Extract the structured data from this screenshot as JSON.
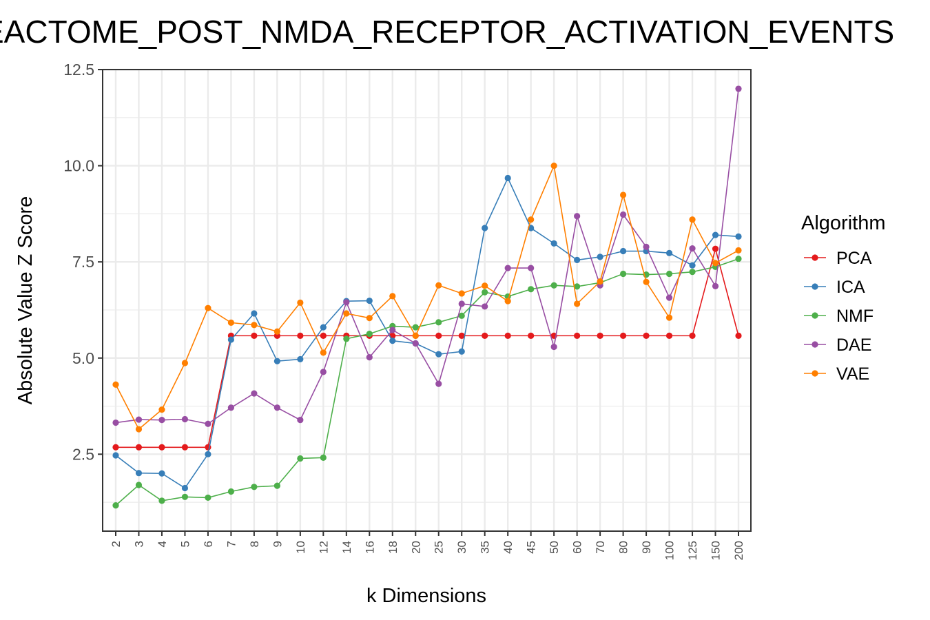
{
  "colors": {
    "PCA": "#e41a1c",
    "ICA": "#377eb8",
    "NMF": "#4daf4a",
    "DAE": "#984ea3",
    "VAE": "#ff7f00",
    "grid": "#ebebeb",
    "panel_border": "#333333"
  },
  "chart_data": {
    "type": "line",
    "title": "REACTOME_POST_NMDA_RECEPTOR_ACTIVATION_EVENTS",
    "xlabel": "k Dimensions",
    "ylabel": "Absolute Value Z Score",
    "categories": [
      "2",
      "3",
      "4",
      "5",
      "6",
      "7",
      "8",
      "9",
      "10",
      "12",
      "14",
      "16",
      "18",
      "20",
      "25",
      "30",
      "35",
      "40",
      "45",
      "50",
      "60",
      "70",
      "80",
      "90",
      "100",
      "125",
      "150",
      "200"
    ],
    "ylim": [
      0.5,
      12.5
    ],
    "yticks": [
      "2.5",
      "5.0",
      "7.5",
      "10.0",
      "12.5"
    ],
    "grid": true,
    "legend": {
      "title": "Algorithm",
      "placement": "right"
    },
    "series": [
      {
        "name": "PCA",
        "values": [
          2.68,
          2.68,
          2.68,
          2.68,
          2.68,
          5.58,
          5.58,
          5.58,
          5.58,
          5.58,
          5.58,
          5.58,
          5.58,
          5.58,
          5.58,
          5.58,
          5.58,
          5.58,
          5.58,
          5.58,
          5.58,
          5.58,
          5.58,
          5.58,
          5.58,
          5.58,
          7.84,
          5.58
        ]
      },
      {
        "name": "ICA",
        "values": [
          2.47,
          2.01,
          2.0,
          1.62,
          2.5,
          5.48,
          6.16,
          4.92,
          4.97,
          5.8,
          6.48,
          6.49,
          5.45,
          5.38,
          5.1,
          5.17,
          8.38,
          9.68,
          8.38,
          7.98,
          7.55,
          7.63,
          7.78,
          7.78,
          7.73,
          7.41,
          8.2,
          8.16
        ]
      },
      {
        "name": "NMF",
        "values": [
          1.17,
          1.7,
          1.29,
          1.39,
          1.37,
          1.53,
          1.65,
          1.68,
          2.39,
          2.41,
          5.5,
          5.63,
          5.83,
          5.8,
          5.93,
          6.1,
          6.71,
          6.6,
          6.79,
          6.89,
          6.86,
          6.96,
          7.19,
          7.17,
          7.19,
          7.24,
          7.37,
          7.58
        ]
      },
      {
        "name": "DAE",
        "values": [
          3.32,
          3.4,
          3.39,
          3.41,
          3.29,
          3.71,
          4.08,
          3.71,
          3.39,
          4.64,
          6.45,
          5.02,
          5.73,
          5.38,
          4.33,
          6.41,
          6.34,
          7.34,
          7.34,
          5.29,
          8.69,
          6.89,
          8.73,
          7.89,
          6.57,
          7.85,
          6.87,
          12.0
        ]
      },
      {
        "name": "VAE",
        "values": [
          4.31,
          3.15,
          3.66,
          4.87,
          6.3,
          5.92,
          5.86,
          5.69,
          6.44,
          5.14,
          6.16,
          6.04,
          6.61,
          5.58,
          6.89,
          6.68,
          6.88,
          6.48,
          8.6,
          10.0,
          6.41,
          6.99,
          9.24,
          6.98,
          6.05,
          8.6,
          7.47,
          7.8
        ]
      }
    ]
  }
}
